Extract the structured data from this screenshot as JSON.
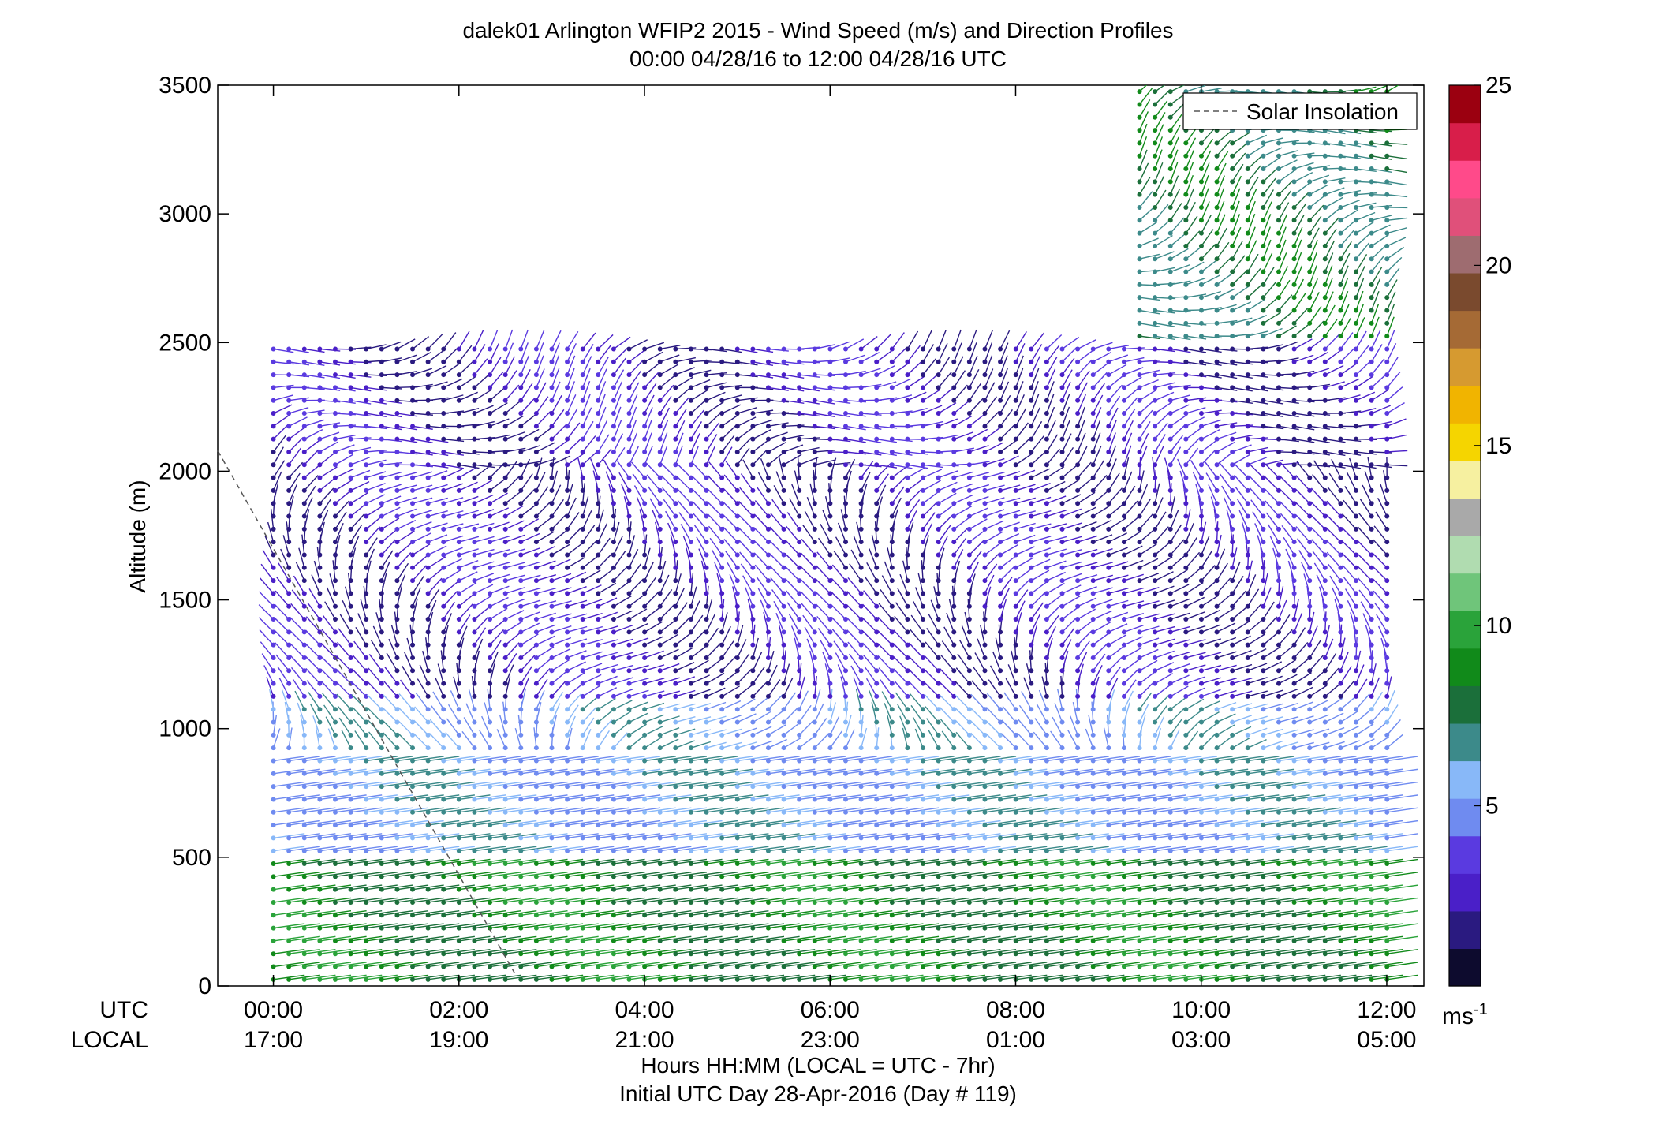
{
  "chart_data": {
    "type": "wind-barb-profile",
    "title": "dalek01 Arlington WFIP2 2015 - Wind Speed (m/s) and Direction Profiles",
    "subtitle": "00:00 04/28/16 to 12:00 04/28/16  UTC",
    "ylabel": "Altitude (m)",
    "xlabel": "Hours HH:MM  (LOCAL = UTC - 7hr)",
    "xlabel2": "Initial UTC Day 28-Apr-2016 (Day # 119)",
    "x_row_labels": {
      "utc": "UTC",
      "local": "LOCAL"
    },
    "ylim": [
      0,
      3500
    ],
    "y_ticks": [
      "0",
      "500",
      "1000",
      "1500",
      "2000",
      "2500",
      "3000",
      "3500"
    ],
    "y_tick_values": [
      0,
      500,
      1000,
      1500,
      2000,
      2500,
      3000,
      3500
    ],
    "xlim_hours": [
      -0.6,
      12.4
    ],
    "x_tick_hours": [
      0,
      2,
      4,
      6,
      8,
      10,
      12
    ],
    "x_ticks_utc": [
      "00:00",
      "02:00",
      "04:00",
      "06:00",
      "08:00",
      "10:00",
      "12:00"
    ],
    "x_ticks_local": [
      "17:00",
      "19:00",
      "21:00",
      "23:00",
      "01:00",
      "03:00",
      "05:00"
    ],
    "legend": {
      "entry": "Solar Insolation",
      "placement": "top-right",
      "style": "dashed"
    },
    "solar_insolation": {
      "x_hours": [
        -0.6,
        2.6
      ],
      "y": [
        2080,
        50
      ]
    },
    "colorbar": {
      "unit_base": "ms",
      "unit_exponent": "-1",
      "range": [
        0,
        25
      ],
      "ticks": [
        "5",
        "10",
        "15",
        "20",
        "25"
      ],
      "tick_values": [
        5,
        10,
        15,
        20,
        25
      ],
      "colors": [
        "#0d0b2e",
        "#2a1a80",
        "#4a1fc8",
        "#5a3ae0",
        "#6f8bf0",
        "#88b8f8",
        "#3c8a8a",
        "#1b6f3a",
        "#118a1a",
        "#2aa33a",
        "#6fc57a",
        "#b0dcb0",
        "#a9a9a9",
        "#f6f0a0",
        "#f5d500",
        "#f1b400",
        "#d69a30",
        "#a56a35",
        "#7a4a2e",
        "#9e6c70",
        "#e0507a",
        "#ff4a8a",
        "#d81e4a",
        "#9b0010"
      ]
    },
    "profiles": {
      "time_start_hours": 0,
      "time_end_hours": 12.1,
      "time_step_hours": 0.1667,
      "speed_bands_ms": [
        {
          "from_m": 0,
          "to_m": 500,
          "speed": 8.5
        },
        {
          "from_m": 500,
          "to_m": 1100,
          "speed": 5.5
        },
        {
          "from_m": 1100,
          "to_m": 2500,
          "speed": 2.5
        },
        {
          "from_m": 2500,
          "to_m": 3500,
          "speed": 7.5
        }
      ]
    }
  }
}
